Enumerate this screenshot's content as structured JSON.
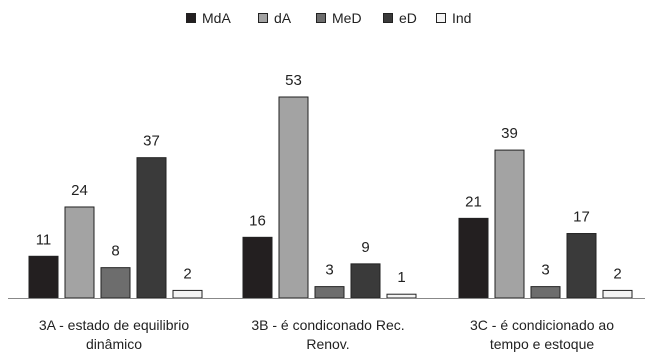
{
  "chart_data": {
    "type": "bar",
    "categories": [
      "3A -  estado de equilibrio dinâmico",
      "3B - é condiconado Rec. Renov.",
      "3C - é condicionado ao tempo e estoque"
    ],
    "category_lines": [
      [
        "3A -  estado de equilibrio",
        "dinâmico"
      ],
      [
        "3B - é condiconado Rec.",
        "Renov."
      ],
      [
        "3C - é condicionado ao",
        "tempo e estoque"
      ]
    ],
    "series": [
      {
        "name": "MdA",
        "values": [
          11,
          16,
          21
        ],
        "color": "#231f20"
      },
      {
        "name": "dA",
        "values": [
          24,
          53,
          39
        ],
        "color": "#a3a3a3"
      },
      {
        "name": "MeD",
        "values": [
          8,
          3,
          3
        ],
        "color": "#6d6d6d"
      },
      {
        "name": "eD",
        "values": [
          37,
          9,
          17
        ],
        "color": "#3a3a3a"
      },
      {
        "name": "Ind",
        "values": [
          2,
          1,
          2
        ],
        "color": "#f4f4f4"
      }
    ],
    "ylim": [
      0,
      55
    ],
    "legend_position": "top-center",
    "grid": false,
    "data_labels": true
  }
}
